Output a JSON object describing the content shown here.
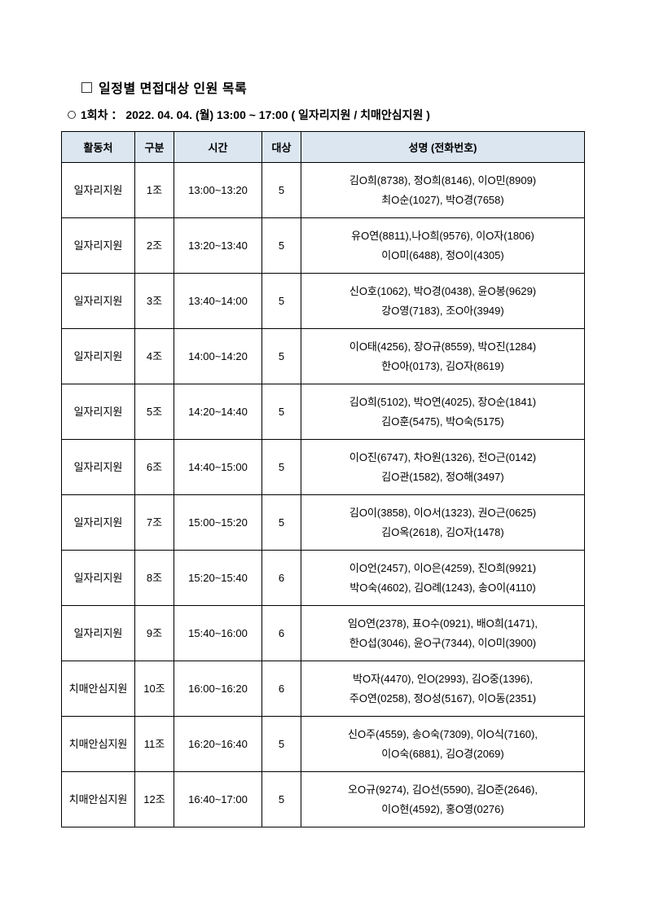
{
  "title": "일정별 면접대상 인원 목록",
  "subtitle": "1회차 ： 2022. 04. 04. (월) 13:00 ~ 17:00 ( 일자리지원 / 치매안심지원 )",
  "headers": {
    "location": "활동처",
    "group": "구분",
    "time": "시간",
    "count": "대상",
    "names": "성명 (전화번호)"
  },
  "rows": [
    {
      "location": "일자리지원",
      "group": "1조",
      "time": "13:00~13:20",
      "count": "5",
      "names_l1": "김O희(8738), 정O희(8146), 이O민(8909)",
      "names_l2": "최O순(1027), 박O경(7658)"
    },
    {
      "location": "일자리지원",
      "group": "2조",
      "time": "13:20~13:40",
      "count": "5",
      "names_l1": "유O연(8811),나O희(9576), 이O자(1806)",
      "names_l2": "이O미(6488), 정O이(4305)"
    },
    {
      "location": "일자리지원",
      "group": "3조",
      "time": "13:40~14:00",
      "count": "5",
      "names_l1": "신O호(1062), 박O경(0438), 윤O봉(9629)",
      "names_l2": "강O영(7183), 조O아(3949)"
    },
    {
      "location": "일자리지원",
      "group": "4조",
      "time": "14:00~14:20",
      "count": "5",
      "names_l1": "이O태(4256), 장O규(8559), 박O진(1284)",
      "names_l2": "한O아(0173), 김O자(8619)"
    },
    {
      "location": "일자리지원",
      "group": "5조",
      "time": "14:20~14:40",
      "count": "5",
      "names_l1": "김O희(5102), 박O연(4025), 장O순(1841)",
      "names_l2": "김O훈(5475), 박O숙(5175)"
    },
    {
      "location": "일자리지원",
      "group": "6조",
      "time": "14:40~15:00",
      "count": "5",
      "names_l1": "이O진(6747), 차O원(1326), 전O근(0142)",
      "names_l2": "김O관(1582), 정O해(3497)"
    },
    {
      "location": "일자리지원",
      "group": "7조",
      "time": "15:00~15:20",
      "count": "5",
      "names_l1": "김O이(3858), 이O서(1323), 권O근(0625)",
      "names_l2": "김O옥(2618), 김O자(1478)"
    },
    {
      "location": "일자리지원",
      "group": "8조",
      "time": "15:20~15:40",
      "count": "6",
      "names_l1": "이O언(2457), 이O은(4259), 진O희(9921)",
      "names_l2": "박O숙(4602), 김O례(1243), 송O이(4110)"
    },
    {
      "location": "일자리지원",
      "group": "9조",
      "time": "15:40~16:00",
      "count": "6",
      "names_l1": "임O연(2378), 표O수(0921), 배O희(1471),",
      "names_l2": "한O섭(3046), 윤O구(7344), 이O미(3900)"
    },
    {
      "location": "치매안심지원",
      "group": "10조",
      "time": "16:00~16:20",
      "count": "6",
      "names_l1": "박O자(4470), 인O(2993), 김O중(1396),",
      "names_l2": "주O연(0258), 정O성(5167), 이O동(2351)"
    },
    {
      "location": "치매안심지원",
      "group": "11조",
      "time": "16:20~16:40",
      "count": "5",
      "names_l1": "신O주(4559), 송O숙(7309), 이O식(7160),",
      "names_l2": "이O숙(6881), 김O경(2069)"
    },
    {
      "location": "치매안심지원",
      "group": "12조",
      "time": "16:40~17:00",
      "count": "5",
      "names_l1": "오O규(9274), 김O선(5590), 김O준(2646),",
      "names_l2": "이O현(4592), 홍O영(0276)"
    }
  ]
}
